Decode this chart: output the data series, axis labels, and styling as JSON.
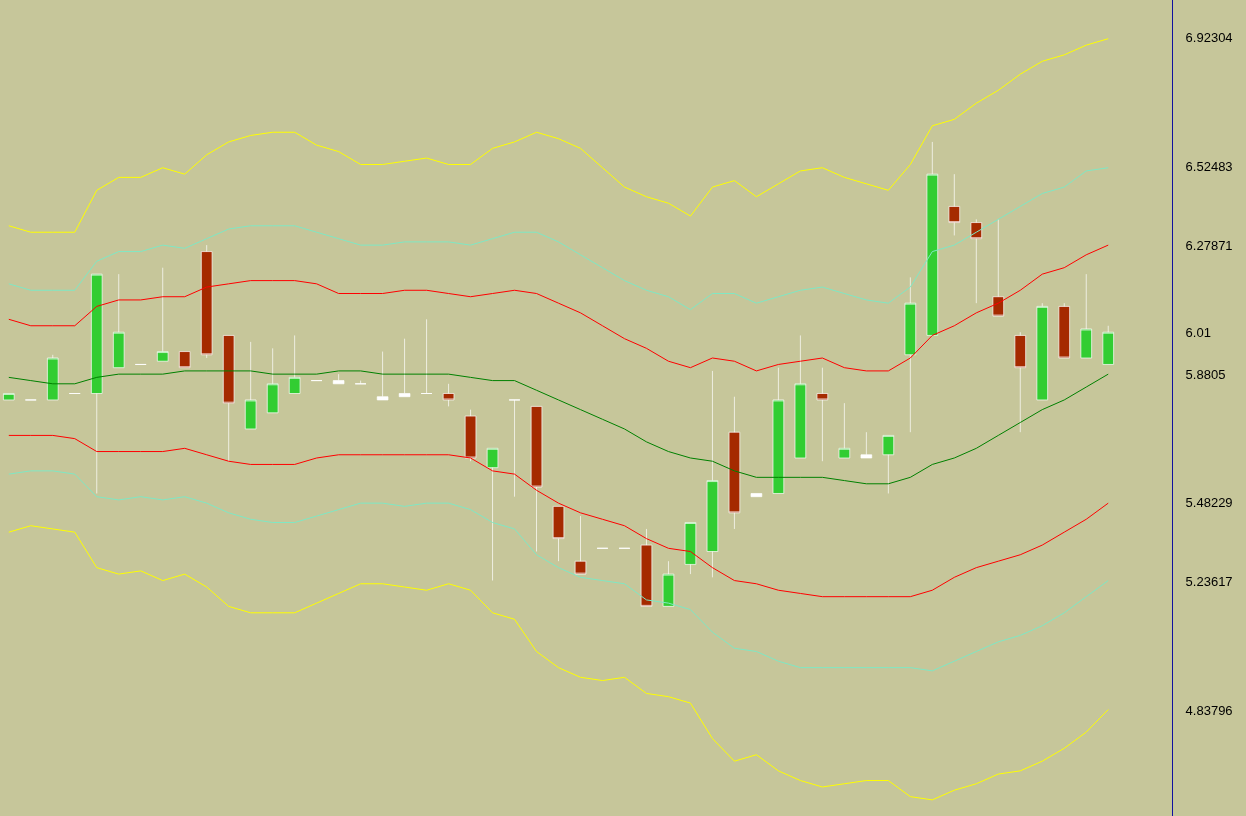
{
  "chart_data": {
    "type": "candlestick",
    "categories": [
      null,
      null,
      null,
      null,
      null,
      null,
      null,
      null,
      null,
      null,
      null,
      null,
      null,
      null,
      null,
      null,
      null,
      null,
      null,
      null,
      null,
      null,
      null,
      null,
      null,
      null,
      null,
      null,
      null,
      null,
      null,
      null,
      null,
      null,
      null,
      null,
      null,
      null,
      null,
      null,
      null,
      null,
      null,
      null,
      null,
      null,
      null,
      null,
      null,
      null,
      null
    ],
    "ohlc": [
      [
        5.8,
        5.82,
        5.8,
        5.82
      ],
      [
        5.8,
        5.8,
        5.8,
        5.8
      ],
      [
        5.8,
        5.94,
        5.8,
        5.93
      ],
      [
        5.82,
        5.82,
        5.82,
        5.82
      ],
      [
        5.82,
        6.19,
        5.51,
        6.19
      ],
      [
        5.9,
        6.19,
        5.9,
        6.01
      ],
      [
        5.91,
        5.91,
        5.91,
        5.91
      ],
      [
        5.92,
        6.21,
        5.92,
        5.95
      ],
      [
        5.95,
        5.95,
        5.9,
        5.9
      ],
      [
        6.26,
        6.28,
        5.93,
        5.94
      ],
      [
        6.0,
        6.0,
        5.61,
        5.79
      ],
      [
        5.71,
        5.98,
        5.71,
        5.8
      ],
      [
        5.76,
        5.96,
        5.76,
        5.85
      ],
      [
        5.82,
        6.0,
        5.82,
        5.87
      ],
      [
        5.86,
        5.86,
        5.86,
        5.86
      ],
      [
        5.86,
        5.88,
        5.85,
        5.85
      ],
      [
        5.85,
        5.86,
        5.85,
        5.85
      ],
      [
        5.8,
        5.95,
        5.8,
        5.81
      ],
      [
        5.81,
        5.99,
        5.81,
        5.82
      ],
      [
        5.82,
        6.05,
        5.82,
        5.82
      ],
      [
        5.82,
        5.85,
        5.78,
        5.8
      ],
      [
        5.75,
        5.77,
        5.61,
        5.62
      ],
      [
        5.59,
        5.65,
        5.24,
        5.65
      ],
      [
        5.8,
        5.8,
        5.5,
        5.8
      ],
      [
        5.78,
        5.78,
        5.33,
        5.53
      ],
      [
        5.47,
        5.47,
        5.3,
        5.37
      ],
      [
        5.3,
        5.44,
        5.26,
        5.26
      ],
      [
        5.34,
        5.34,
        5.34,
        5.34
      ],
      [
        5.34,
        5.34,
        5.34,
        5.34
      ],
      [
        5.35,
        5.4,
        5.16,
        5.16
      ],
      [
        5.16,
        5.3,
        5.16,
        5.26
      ],
      [
        5.29,
        5.42,
        5.26,
        5.42
      ],
      [
        5.33,
        5.89,
        5.25,
        5.55
      ],
      [
        5.7,
        5.81,
        5.4,
        5.45
      ],
      [
        5.5,
        5.51,
        5.5,
        5.51
      ],
      [
        5.51,
        5.9,
        5.51,
        5.8
      ],
      [
        5.62,
        6.0,
        5.62,
        5.85
      ],
      [
        5.82,
        5.9,
        5.61,
        5.8
      ],
      [
        5.62,
        5.79,
        5.62,
        5.65
      ],
      [
        5.62,
        5.7,
        5.62,
        5.63
      ],
      [
        5.63,
        5.69,
        5.51,
        5.69
      ],
      [
        5.94,
        6.18,
        5.7,
        6.1
      ],
      [
        6.0,
        6.6,
        6.0,
        6.5
      ],
      [
        6.4,
        6.5,
        6.31,
        6.35
      ],
      [
        6.35,
        6.36,
        6.1,
        6.3
      ],
      [
        6.12,
        6.36,
        6.06,
        6.06
      ],
      [
        6.0,
        6.01,
        5.7,
        5.9
      ],
      [
        5.8,
        6.1,
        5.8,
        6.09
      ],
      [
        6.09,
        6.1,
        5.93,
        5.93
      ],
      [
        5.93,
        6.19,
        5.93,
        6.02
      ],
      [
        5.91,
        6.03,
        5.91,
        6.01
      ]
    ],
    "colors": [
      "#32cd32",
      "#ffffff",
      "#32cd32",
      "#ffffff",
      "#32cd32",
      "#32cd32",
      "#ffffff",
      "#32cd32",
      "#a52a00",
      "#a52a00",
      "#a52a00",
      "#32cd32",
      "#32cd32",
      "#32cd32",
      "#ffffff",
      "#ffffff",
      "#ffffff",
      "#ffffff",
      "#ffffff",
      "#ffffff",
      "#a52a00",
      "#a52a00",
      "#32cd32",
      "#ffffff",
      "#a52a00",
      "#a52a00",
      "#a52a00",
      "#ffffff",
      "#ffffff",
      "#a52a00",
      "#32cd32",
      "#32cd32",
      "#32cd32",
      "#a52a00",
      "#ffffff",
      "#32cd32",
      "#32cd32",
      "#a52a00",
      "#32cd32",
      "#ffffff",
      "#32cd32",
      "#32cd32",
      "#32cd32",
      "#a52a00",
      "#a52a00",
      "#a52a00",
      "#a52a00",
      "#32cd32",
      "#a52a00",
      "#32cd32",
      "#32cd32"
    ],
    "series": [
      {
        "type": "line",
        "color": "#ffff00",
        "values": [
          6.34,
          6.32,
          6.32,
          6.32,
          6.45,
          6.49,
          6.49,
          6.52,
          6.5,
          6.56,
          6.6,
          6.62,
          6.63,
          6.63,
          6.59,
          6.57,
          6.53,
          6.53,
          6.54,
          6.55,
          6.53,
          6.53,
          6.58,
          6.6,
          6.63,
          6.61,
          6.58,
          6.52,
          6.46,
          6.43,
          6.41,
          6.37,
          6.46,
          6.48,
          6.43,
          6.47,
          6.51,
          6.52,
          6.49,
          6.47,
          6.45,
          6.53,
          6.65,
          6.67,
          6.72,
          6.76,
          6.81,
          6.85,
          6.87,
          6.9,
          6.92
        ]
      },
      {
        "type": "line",
        "color": "#7fe8c4",
        "values": [
          6.16,
          6.14,
          6.14,
          6.14,
          6.23,
          6.26,
          6.26,
          6.28,
          6.27,
          6.3,
          6.33,
          6.34,
          6.34,
          6.34,
          6.32,
          6.3,
          6.28,
          6.28,
          6.29,
          6.29,
          6.29,
          6.28,
          6.3,
          6.32,
          6.32,
          6.29,
          6.25,
          6.21,
          6.17,
          6.14,
          6.12,
          6.08,
          6.13,
          6.13,
          6.1,
          6.12,
          6.14,
          6.15,
          6.13,
          6.11,
          6.1,
          6.15,
          6.26,
          6.28,
          6.32,
          6.36,
          6.4,
          6.44,
          6.46,
          6.51,
          6.52
        ]
      },
      {
        "type": "line",
        "color": "#ff0000",
        "values": [
          6.05,
          6.03,
          6.03,
          6.03,
          6.09,
          6.11,
          6.11,
          6.12,
          6.12,
          6.15,
          6.16,
          6.17,
          6.17,
          6.17,
          6.16,
          6.13,
          6.13,
          6.13,
          6.14,
          6.14,
          6.13,
          6.12,
          6.13,
          6.14,
          6.13,
          6.1,
          6.07,
          6.03,
          5.99,
          5.96,
          5.92,
          5.9,
          5.93,
          5.92,
          5.89,
          5.91,
          5.92,
          5.93,
          5.9,
          5.89,
          5.89,
          5.93,
          6.0,
          6.03,
          6.07,
          6.1,
          6.14,
          6.19,
          6.21,
          6.25,
          6.28
        ]
      },
      {
        "type": "line",
        "color": "#008000",
        "values": [
          5.87,
          5.86,
          5.85,
          5.85,
          5.87,
          5.88,
          5.88,
          5.88,
          5.89,
          5.89,
          5.89,
          5.89,
          5.88,
          5.88,
          5.88,
          5.89,
          5.89,
          5.88,
          5.88,
          5.88,
          5.88,
          5.87,
          5.86,
          5.86,
          5.83,
          5.8,
          5.77,
          5.74,
          5.71,
          5.67,
          5.64,
          5.62,
          5.61,
          5.58,
          5.56,
          5.56,
          5.56,
          5.56,
          5.55,
          5.54,
          5.54,
          5.56,
          5.6,
          5.62,
          5.65,
          5.69,
          5.73,
          5.77,
          5.8,
          5.84,
          5.88
        ]
      },
      {
        "type": "line",
        "color": "#ff0000",
        "values": [
          5.69,
          5.69,
          5.69,
          5.68,
          5.64,
          5.64,
          5.64,
          5.64,
          5.65,
          5.63,
          5.61,
          5.6,
          5.6,
          5.6,
          5.62,
          5.63,
          5.63,
          5.63,
          5.63,
          5.63,
          5.63,
          5.62,
          5.58,
          5.57,
          5.52,
          5.48,
          5.45,
          5.43,
          5.41,
          5.37,
          5.34,
          5.33,
          5.28,
          5.24,
          5.23,
          5.21,
          5.2,
          5.19,
          5.19,
          5.19,
          5.19,
          5.19,
          5.21,
          5.25,
          5.28,
          5.3,
          5.32,
          5.35,
          5.39,
          5.43,
          5.48
        ]
      },
      {
        "type": "line",
        "color": "#7fe8c4",
        "values": [
          5.57,
          5.58,
          5.58,
          5.57,
          5.5,
          5.49,
          5.5,
          5.49,
          5.5,
          5.48,
          5.45,
          5.43,
          5.42,
          5.42,
          5.44,
          5.46,
          5.48,
          5.48,
          5.47,
          5.48,
          5.48,
          5.46,
          5.42,
          5.4,
          5.32,
          5.28,
          5.25,
          5.24,
          5.23,
          5.18,
          5.17,
          5.15,
          5.08,
          5.03,
          5.02,
          4.99,
          4.97,
          4.97,
          4.97,
          4.97,
          4.97,
          4.97,
          4.96,
          4.99,
          5.02,
          5.05,
          5.07,
          5.1,
          5.14,
          5.19,
          5.24
        ]
      },
      {
        "type": "line",
        "color": "#ffff00",
        "values": [
          5.39,
          5.41,
          5.4,
          5.39,
          5.28,
          5.26,
          5.27,
          5.24,
          5.26,
          5.22,
          5.16,
          5.14,
          5.14,
          5.14,
          5.17,
          5.2,
          5.23,
          5.23,
          5.22,
          5.21,
          5.23,
          5.21,
          5.14,
          5.12,
          5.02,
          4.97,
          4.94,
          4.93,
          4.94,
          4.89,
          4.88,
          4.86,
          4.75,
          4.68,
          4.7,
          4.65,
          4.62,
          4.6,
          4.61,
          4.62,
          4.62,
          4.57,
          4.56,
          4.59,
          4.61,
          4.64,
          4.65,
          4.68,
          4.72,
          4.77,
          4.84
        ]
      }
    ],
    "ylim": [
      4.51,
      7.04
    ],
    "yticks": [
      6.92304,
      6.52483,
      6.27871,
      6.01,
      5.8805,
      5.48229,
      5.23617,
      4.83796
    ],
    "tick_labels": "y",
    "marker": "none",
    "line_style": "solid"
  }
}
